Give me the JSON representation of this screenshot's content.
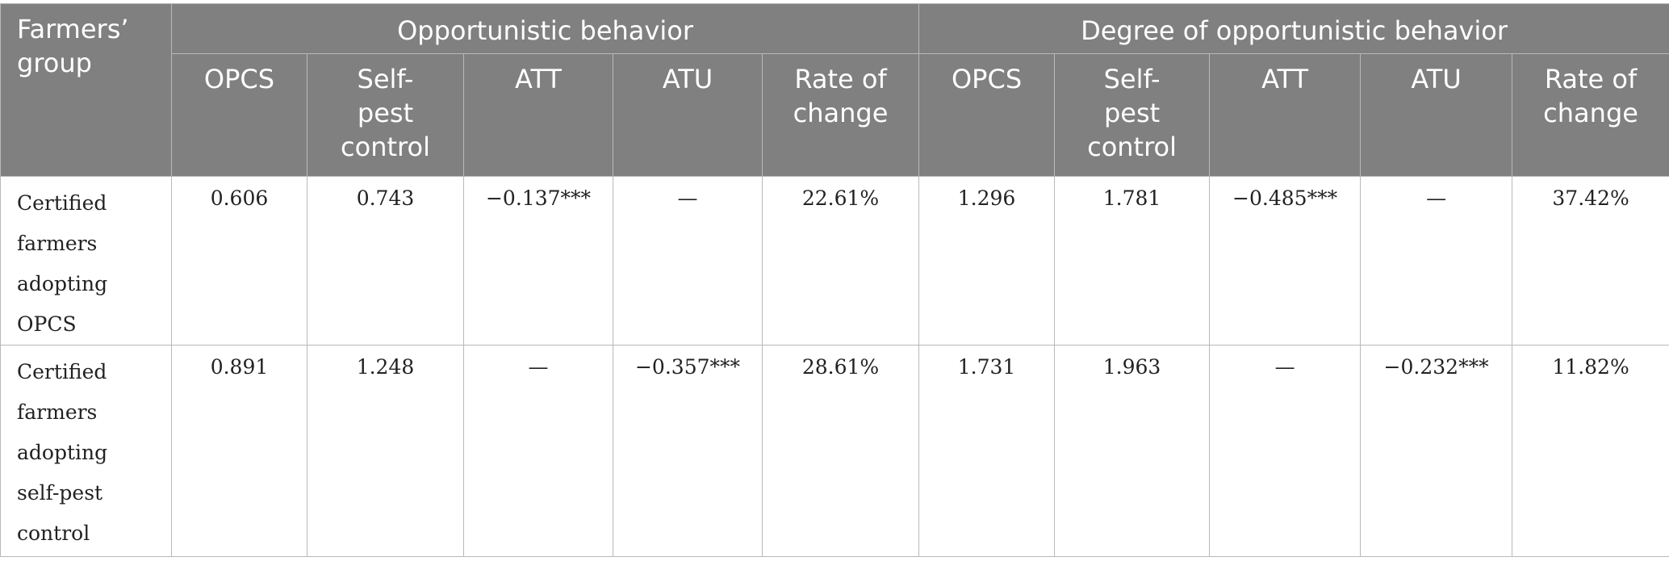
{
  "header": {
    "group_label_line1": "Farmers’",
    "group_label_line2": "group",
    "span1": "Opportunistic behavior",
    "span2": "Degree of opportunistic behavior",
    "sub": {
      "opcs": "OPCS",
      "self_l1": "Self-",
      "self_l2": "pest",
      "self_l3": "control",
      "att": "ATT",
      "atu": "ATU",
      "rate_l1": "Rate of",
      "rate_l2": "change"
    }
  },
  "rows": [
    {
      "label_lines": [
        "Certified",
        "farmers",
        "adopting",
        "OPCS"
      ],
      "cells": [
        "0.606",
        "0.743",
        "−0.137***",
        "—",
        "22.61%",
        "1.296",
        "1.781",
        "−0.485***",
        "—",
        "37.42%"
      ]
    },
    {
      "label_lines": [
        "Certified",
        "farmers",
        "adopting",
        "self-pest",
        "control"
      ],
      "cells": [
        "0.891",
        "1.248",
        "—",
        "−0.357***",
        "28.61%",
        "1.731",
        "1.963",
        "—",
        "−0.232***",
        "11.82%"
      ]
    }
  ]
}
